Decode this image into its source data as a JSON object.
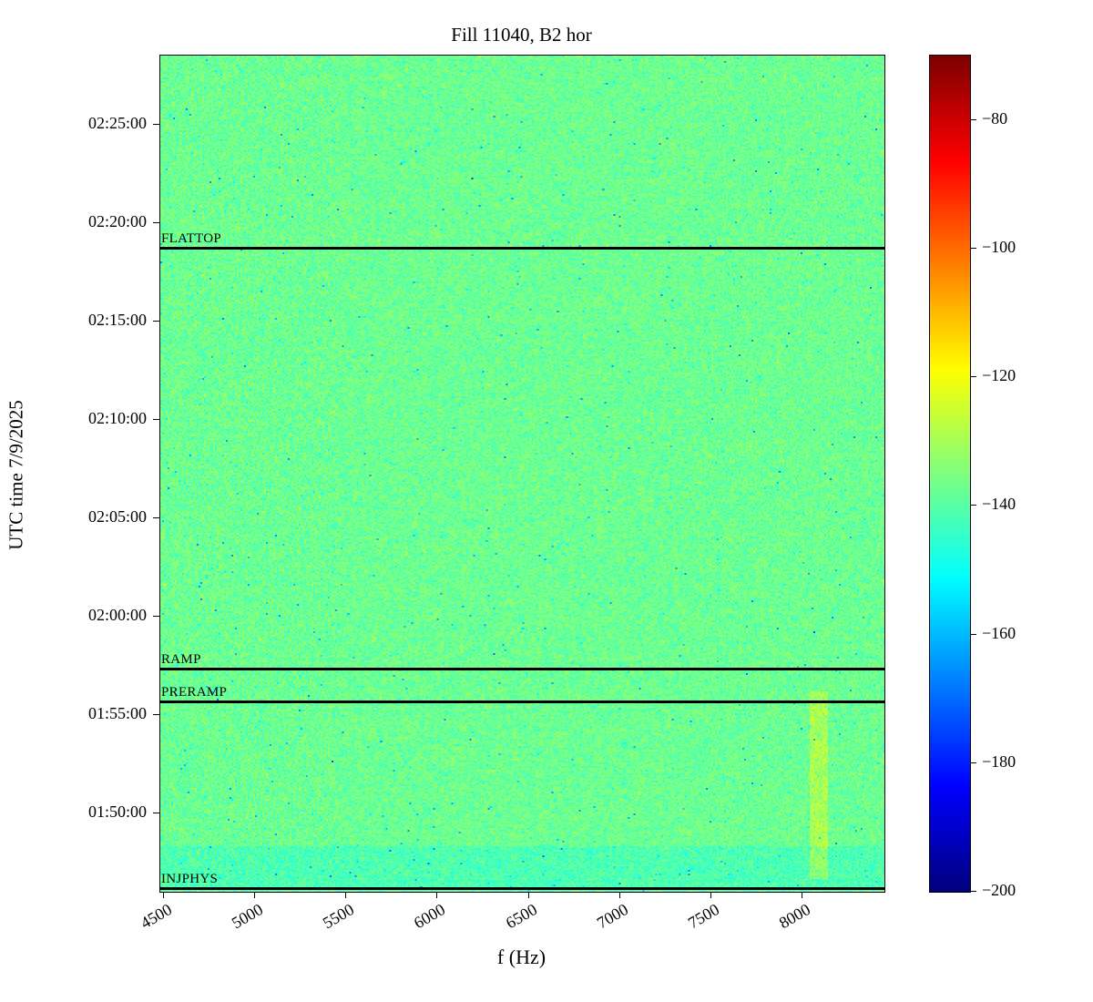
{
  "figure": {
    "title": "Fill 11040, B2 hor",
    "xlabel": "f (Hz)",
    "ylabel": "UTC time 7/9/2025"
  },
  "chart_data": {
    "type": "heatmap",
    "title": "Fill 11040, B2 hor",
    "xlabel": "f (Hz)",
    "ylabel": "UTC time 7/9/2025",
    "colormap": "jet",
    "x_range_hz": [
      4480,
      8450
    ],
    "x_ticks": [
      4500,
      5000,
      5500,
      6000,
      6500,
      7000,
      7500,
      8000
    ],
    "y_time_start": "01:46:00",
    "y_time_end": "02:28:30",
    "y_ticks": [
      "01:50:00",
      "01:55:00",
      "02:00:00",
      "02:05:00",
      "02:10:00",
      "02:15:00",
      "02:20:00",
      "02:25:00"
    ],
    "colorbar": {
      "vmin": -200,
      "vmax": -70,
      "ticks": [
        -80,
        -100,
        -120,
        -140,
        -160,
        -180,
        -200
      ]
    },
    "noise": {
      "base_db": -137.5,
      "amplitude_db": 5.5,
      "seed": 11040
    },
    "features": [
      {
        "name": "bottom-cyan-band",
        "time_before": "01:48:20",
        "delta_db": -4
      },
      {
        "name": "yellow-streak",
        "f_hz": [
          8040,
          8140
        ],
        "time_window": [
          "01:46:40",
          "01:56:10"
        ],
        "delta_db": 9
      }
    ],
    "annotations": [
      {
        "label": "FLATTOP",
        "time": "02:18:45"
      },
      {
        "label": "RAMP",
        "time": "01:57:20"
      },
      {
        "label": "PRERAMP",
        "time": "01:55:40"
      },
      {
        "label": "INJPHYS",
        "time": "01:46:12"
      }
    ]
  }
}
